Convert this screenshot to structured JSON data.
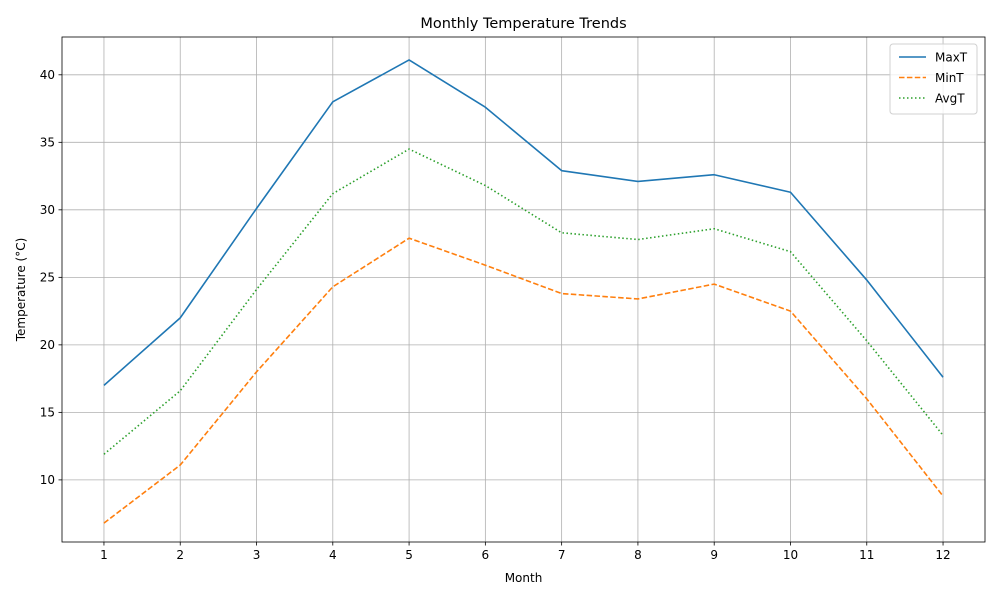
{
  "chart_data": {
    "type": "line",
    "title": "Monthly Temperature Trends",
    "xlabel": "Month",
    "ylabel": "Temperature (°C)",
    "x": [
      1,
      2,
      3,
      4,
      5,
      6,
      7,
      8,
      9,
      10,
      11,
      12
    ],
    "xlim": [
      0.45,
      12.55
    ],
    "ylim": [
      5.4,
      42.8
    ],
    "yticks": [
      10,
      15,
      20,
      25,
      30,
      35,
      40
    ],
    "grid": true,
    "legend_position": "top-right",
    "series": [
      {
        "name": "MaxT",
        "color": "#1f77b4",
        "dash": "solid",
        "values": [
          17.0,
          22.0,
          30.1,
          38.0,
          41.1,
          37.6,
          32.9,
          32.1,
          32.6,
          31.3,
          24.8,
          17.6
        ]
      },
      {
        "name": "MinT",
        "color": "#ff7f0e",
        "dash": "dashed",
        "values": [
          6.8,
          11.1,
          18.0,
          24.3,
          27.9,
          25.9,
          23.8,
          23.4,
          24.5,
          22.5,
          16.0,
          8.8
        ]
      },
      {
        "name": "AvgT",
        "color": "#2ca02c",
        "dash": "dotted",
        "values": [
          11.9,
          16.6,
          24.1,
          31.2,
          34.5,
          31.8,
          28.3,
          27.8,
          28.6,
          26.9,
          20.3,
          13.3
        ]
      }
    ]
  }
}
